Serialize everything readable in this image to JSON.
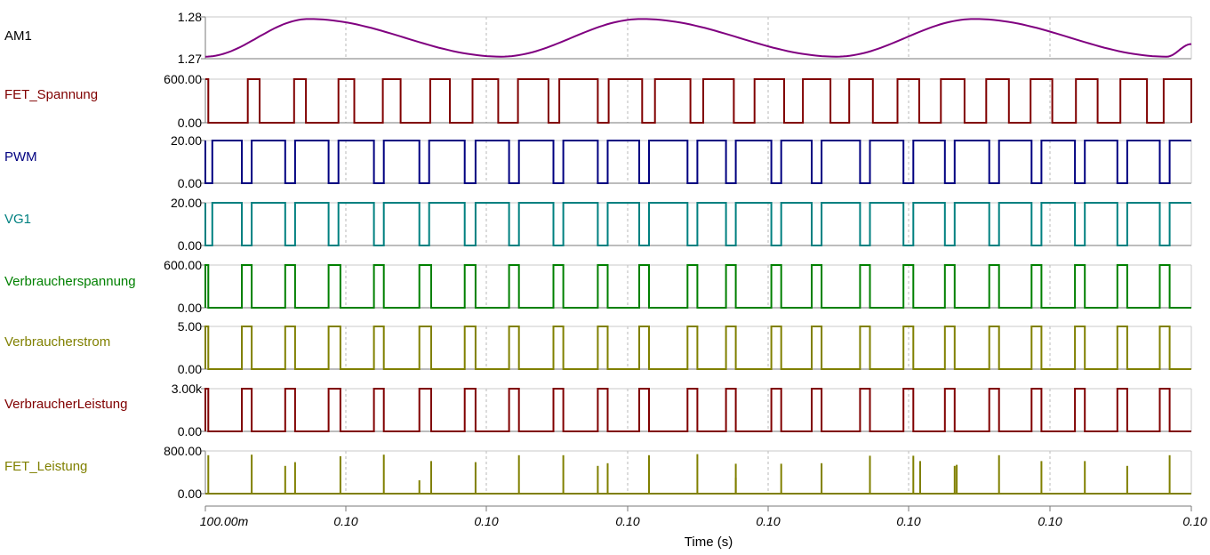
{
  "chart_data": {
    "type": "line",
    "xlabel": "Time (s)",
    "x_tick_labels": [
      "100.00m",
      "0.10",
      "0.10",
      "0.10",
      "0.10",
      "0.10",
      "0.10",
      "0.10"
    ],
    "grid": true,
    "channels": [
      {
        "name": "AM1",
        "color": "#000000",
        "trace_color": "#800080",
        "y_tick_labels": [
          "1.28",
          "1.27"
        ],
        "ylim": [
          1.27,
          1.28
        ],
        "kind": "sine",
        "sine": {
          "center": 1.275,
          "amplitude": 0.0045,
          "peaks_x": [
            0.105,
            0.4425,
            0.78
          ],
          "trough_x": [
            0.3,
            0.64,
            0.975
          ],
          "min_left": 1.2705,
          "end_value": 1.2735
        }
      },
      {
        "name": "FET_Spannung",
        "color": "#800000",
        "trace_color": "#800000",
        "y_tick_labels": [
          "600.00",
          "0.00"
        ],
        "ylim": [
          0,
          600
        ],
        "kind": "pulse",
        "high": 600,
        "low": 0,
        "start": "high",
        "edges": [
          0.003,
          0.043,
          0.055,
          0.09,
          0.102,
          0.135,
          0.151,
          0.18,
          0.198,
          0.228,
          0.248,
          0.271,
          0.297,
          0.317,
          0.348,
          0.359,
          0.398,
          0.409,
          0.443,
          0.456,
          0.492,
          0.505,
          0.536,
          0.557,
          0.587,
          0.606,
          0.634,
          0.653,
          0.677,
          0.702,
          0.724,
          0.746,
          0.77,
          0.792,
          0.815,
          0.837,
          0.859,
          0.883,
          0.905,
          0.928,
          0.955,
          0.972,
          1.0
        ]
      },
      {
        "name": "PWM",
        "color": "#000080",
        "trace_color": "#000080",
        "y_tick_labels": [
          "20.00",
          "0.00"
        ],
        "ylim": [
          0,
          20
        ],
        "kind": "pulse",
        "high": 20,
        "low": 0,
        "start": "high",
        "edges": [
          0.0,
          0.007,
          0.037,
          0.047,
          0.081,
          0.091,
          0.125,
          0.135,
          0.171,
          0.181,
          0.217,
          0.227,
          0.263,
          0.274,
          0.308,
          0.318,
          0.353,
          0.363,
          0.398,
          0.408,
          0.44,
          0.45,
          0.489,
          0.499,
          0.528,
          0.538,
          0.574,
          0.584,
          0.615,
          0.625,
          0.664,
          0.674,
          0.708,
          0.718,
          0.75,
          0.76,
          0.795,
          0.805,
          0.838,
          0.848,
          0.882,
          0.892,
          0.925,
          0.935,
          0.968,
          0.978
        ]
      },
      {
        "name": "VG1",
        "color": "#008080",
        "trace_color": "#008080",
        "y_tick_labels": [
          "20.00",
          "0.00"
        ],
        "ylim": [
          0,
          20
        ],
        "kind": "pulse",
        "high": 20,
        "low": 0,
        "start": "high",
        "edges": [
          0.0,
          0.007,
          0.037,
          0.047,
          0.081,
          0.091,
          0.125,
          0.135,
          0.171,
          0.181,
          0.217,
          0.227,
          0.263,
          0.274,
          0.308,
          0.318,
          0.353,
          0.363,
          0.398,
          0.408,
          0.44,
          0.45,
          0.489,
          0.499,
          0.528,
          0.538,
          0.574,
          0.584,
          0.615,
          0.625,
          0.664,
          0.674,
          0.708,
          0.718,
          0.75,
          0.76,
          0.795,
          0.805,
          0.838,
          0.848,
          0.882,
          0.892,
          0.925,
          0.935,
          0.968,
          0.978
        ]
      },
      {
        "name": "Verbraucherspannung",
        "color": "#008000",
        "trace_color": "#008000",
        "y_tick_labels": [
          "600.00",
          "0.00"
        ],
        "ylim": [
          0,
          600
        ],
        "kind": "pulse",
        "high": 600,
        "low": 0,
        "start": "low",
        "edges": [
          0.0,
          0.003,
          0.037,
          0.047,
          0.081,
          0.091,
          0.125,
          0.137,
          0.171,
          0.181,
          0.217,
          0.229,
          0.263,
          0.274,
          0.308,
          0.318,
          0.353,
          0.363,
          0.398,
          0.408,
          0.44,
          0.45,
          0.489,
          0.499,
          0.528,
          0.538,
          0.574,
          0.584,
          0.615,
          0.625,
          0.664,
          0.674,
          0.708,
          0.718,
          0.75,
          0.76,
          0.795,
          0.805,
          0.838,
          0.848,
          0.882,
          0.892,
          0.925,
          0.935,
          0.968,
          0.978
        ]
      },
      {
        "name": "Verbraucherstrom",
        "color": "#808000",
        "trace_color": "#808000",
        "y_tick_labels": [
          "5.00",
          "0.00"
        ],
        "ylim": [
          0,
          5
        ],
        "kind": "pulse",
        "high": 5,
        "low": 0,
        "start": "low",
        "edges": [
          0.0,
          0.003,
          0.037,
          0.047,
          0.081,
          0.091,
          0.125,
          0.137,
          0.171,
          0.181,
          0.217,
          0.229,
          0.263,
          0.274,
          0.308,
          0.318,
          0.353,
          0.363,
          0.398,
          0.408,
          0.44,
          0.45,
          0.489,
          0.499,
          0.528,
          0.538,
          0.574,
          0.584,
          0.615,
          0.625,
          0.664,
          0.674,
          0.708,
          0.718,
          0.75,
          0.76,
          0.795,
          0.805,
          0.838,
          0.848,
          0.882,
          0.892,
          0.925,
          0.935,
          0.968,
          0.978
        ]
      },
      {
        "name": "VerbraucherLeistung",
        "color": "#800000",
        "trace_color": "#800000",
        "y_tick_labels": [
          "3.00k",
          "0.00"
        ],
        "ylim": [
          0,
          3000
        ],
        "kind": "pulse",
        "high": 3000,
        "low": 0,
        "start": "low",
        "edges": [
          0.0,
          0.003,
          0.037,
          0.047,
          0.081,
          0.091,
          0.125,
          0.137,
          0.171,
          0.181,
          0.217,
          0.229,
          0.263,
          0.274,
          0.308,
          0.318,
          0.353,
          0.363,
          0.398,
          0.408,
          0.44,
          0.45,
          0.489,
          0.499,
          0.528,
          0.538,
          0.574,
          0.584,
          0.615,
          0.625,
          0.664,
          0.674,
          0.708,
          0.718,
          0.75,
          0.76,
          0.795,
          0.805,
          0.838,
          0.848,
          0.882,
          0.892,
          0.925,
          0.935,
          0.968,
          0.978
        ]
      },
      {
        "name": "FET_Leistung",
        "color": "#808000",
        "trace_color": "#808000",
        "y_tick_labels": [
          "800.00",
          "0.00"
        ],
        "ylim": [
          0,
          800
        ],
        "kind": "spikes",
        "spikes": [
          [
            0.003,
            720
          ],
          [
            0.047,
            730
          ],
          [
            0.081,
            520
          ],
          [
            0.091,
            590
          ],
          [
            0.137,
            700
          ],
          [
            0.181,
            730
          ],
          [
            0.217,
            250
          ],
          [
            0.229,
            610
          ],
          [
            0.229,
            380
          ],
          [
            0.274,
            590
          ],
          [
            0.318,
            720
          ],
          [
            0.363,
            720
          ],
          [
            0.398,
            520
          ],
          [
            0.408,
            570
          ],
          [
            0.45,
            720
          ],
          [
            0.499,
            740
          ],
          [
            0.538,
            560
          ],
          [
            0.538,
            300
          ],
          [
            0.584,
            560
          ],
          [
            0.625,
            570
          ],
          [
            0.674,
            710
          ],
          [
            0.718,
            710
          ],
          [
            0.725,
            610
          ],
          [
            0.76,
            520
          ],
          [
            0.762,
            540
          ],
          [
            0.805,
            720
          ],
          [
            0.848,
            610
          ],
          [
            0.892,
            610
          ],
          [
            0.935,
            520
          ],
          [
            0.978,
            720
          ]
        ]
      }
    ]
  }
}
